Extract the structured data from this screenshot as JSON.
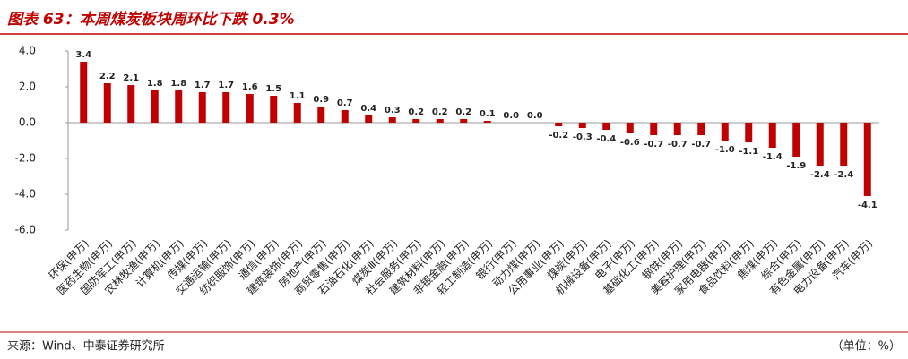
{
  "chart_data": {
    "type": "bar",
    "title": "图表 63：本周煤炭板块周环比下跌 0.3%",
    "source": "来源：Wind、中泰证券研究所",
    "unit": "（单位：%）",
    "categories": [
      "环保(申万)",
      "医药生物(申万)",
      "国防军工(申万)",
      "农林牧渔(申万)",
      "计算机(申万)",
      "传媒(申万)",
      "交通运输(申万)",
      "纺织服饰(申万)",
      "通信(申万)",
      "建筑装饰(申万)",
      "房地产(申万)",
      "商贸零售(申万)",
      "石油石化(申万)",
      "煤炭Ⅲ(申万)",
      "社会服务(申万)",
      "建筑材料(申万)",
      "非银金融(申万)",
      "轻工制造(申万)",
      "银行(申万)",
      "动力煤(申万)",
      "公用事业(申万)",
      "煤炭(申万)",
      "机械设备(申万)",
      "电子(申万)",
      "基础化工(申万)",
      "钢铁(申万)",
      "美容护理(申万)",
      "家用电器(申万)",
      "食品饮料(申万)",
      "焦煤(申万)",
      "综合(申万)",
      "有色金属(申万)",
      "电力设备(申万)",
      "汽车(申万)"
    ],
    "values": [
      3.4,
      2.2,
      2.1,
      1.8,
      1.8,
      1.7,
      1.7,
      1.6,
      1.5,
      1.1,
      0.9,
      0.7,
      0.4,
      0.3,
      0.2,
      0.2,
      0.2,
      0.1,
      0.0,
      0.0,
      -0.2,
      -0.3,
      -0.4,
      -0.6,
      -0.7,
      -0.7,
      -0.7,
      -1.0,
      -1.1,
      -1.4,
      -1.9,
      -2.4,
      -2.4,
      -4.1
    ],
    "value_labels": [
      "3.4",
      "2.2",
      "2.1",
      "1.8",
      "1.8",
      "1.7",
      "1.7",
      "1.6",
      "1.5",
      "1.1",
      "0.9",
      "0.7",
      "0.4",
      "0.3",
      "0.2",
      "0.2",
      "0.2",
      "0.1",
      "0.0",
      "0.0",
      "-0.2",
      "-0.3",
      "-0.4",
      "-0.6",
      "-0.7",
      "-0.7",
      "-0.7",
      "-1.0",
      "-1.1",
      "-1.4",
      "-1.9",
      "-2.4",
      "-2.4",
      "-4.1"
    ],
    "color": "#c00000",
    "ylim": [
      -6,
      4
    ],
    "yticks": [
      {
        "value": -6,
        "label": "-6.0"
      },
      {
        "value": -4,
        "label": "-4.0"
      },
      {
        "value": -2,
        "label": "-2.0"
      },
      {
        "value": 0,
        "label": "0.0"
      },
      {
        "value": 2,
        "label": "2.0"
      },
      {
        "value": 4,
        "label": "4.0"
      }
    ],
    "grid": false
  }
}
